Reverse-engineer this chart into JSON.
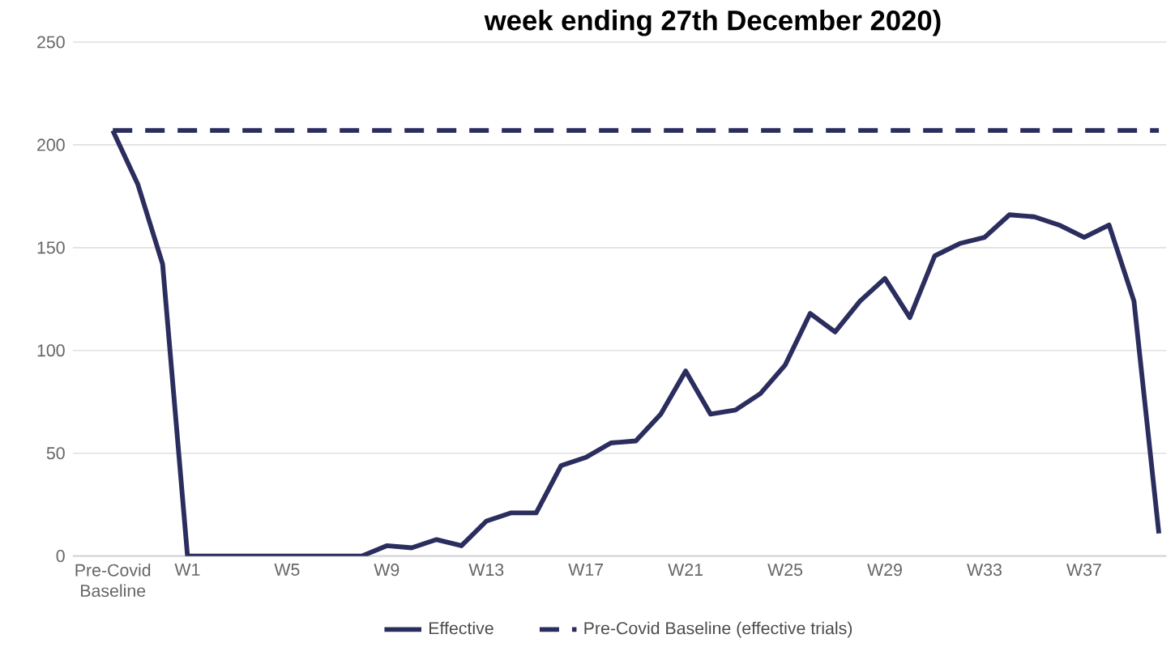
{
  "chart_data": {
    "type": "line",
    "title": "week ending 27th December 2020)",
    "categories": [
      "Pre-Covid Baseline",
      null,
      null,
      "W1",
      null,
      null,
      null,
      "W5",
      null,
      null,
      null,
      "W9",
      null,
      null,
      null,
      "W13",
      null,
      null,
      null,
      "W17",
      null,
      null,
      null,
      "W21",
      null,
      null,
      null,
      "W25",
      null,
      null,
      null,
      "W29",
      null,
      null,
      null,
      "W33",
      null,
      null,
      null,
      "W37",
      null,
      null,
      null
    ],
    "series": [
      {
        "name": "Effective",
        "color": "#2b2d5e",
        "line_style": "solid",
        "values": [
          207,
          181,
          142,
          0,
          0,
          0,
          0,
          0,
          0,
          0,
          0,
          5,
          4,
          8,
          5,
          17,
          21,
          21,
          44,
          48,
          55,
          56,
          69,
          90,
          69,
          71,
          79,
          93,
          118,
          109,
          124,
          135,
          116,
          146,
          152,
          155,
          166,
          165,
          161,
          155,
          161,
          124,
          11
        ]
      },
      {
        "name": "Pre-Covid Baseline (effective trials)",
        "color": "#2b2d5e",
        "line_style": "dashed",
        "values": [
          207,
          207,
          207,
          207,
          207,
          207,
          207,
          207,
          207,
          207,
          207,
          207,
          207,
          207,
          207,
          207,
          207,
          207,
          207,
          207,
          207,
          207,
          207,
          207,
          207,
          207,
          207,
          207,
          207,
          207,
          207,
          207,
          207,
          207,
          207,
          207,
          207,
          207,
          207,
          207,
          207,
          207,
          207
        ]
      }
    ],
    "ylim": [
      0,
      250
    ],
    "yticks": [
      0,
      50,
      100,
      150,
      200,
      250
    ],
    "grid": "y",
    "legend": "bottom",
    "marker": "none"
  }
}
